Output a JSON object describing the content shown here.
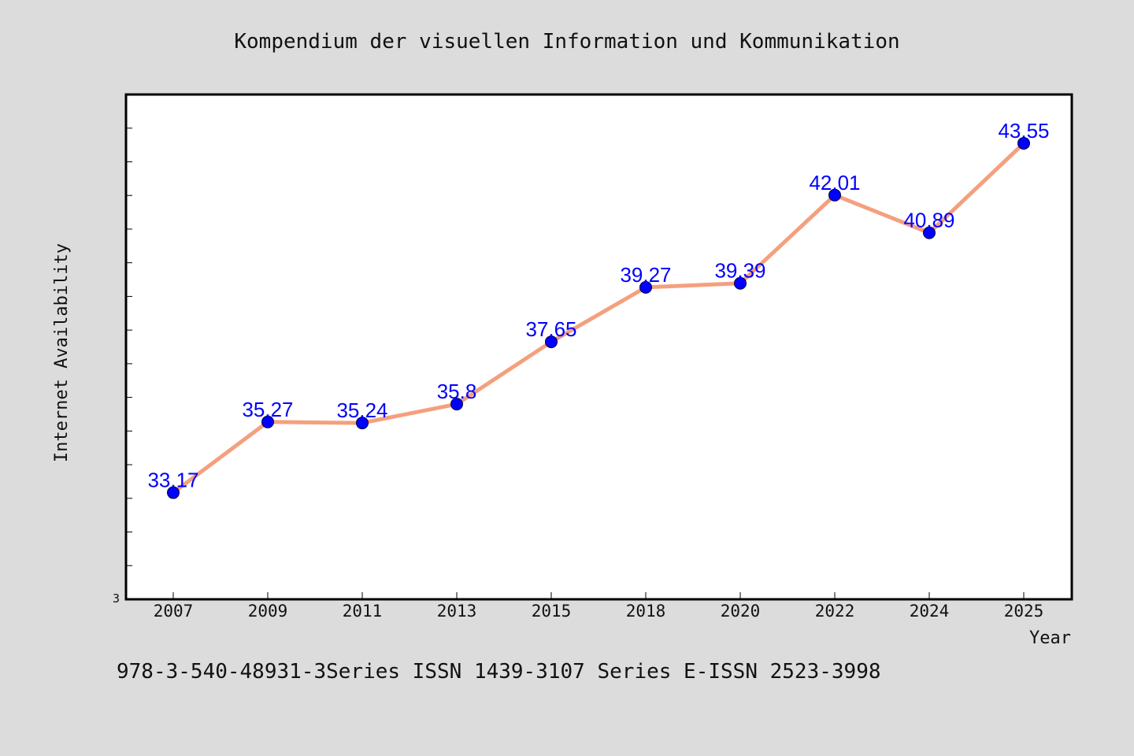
{
  "chart_data": {
    "type": "line",
    "title": "Kompendium der visuellen Information und Kommunikation",
    "xlabel": "Year",
    "ylabel": "Internet Availability",
    "categories": [
      "2007",
      "2009",
      "2011",
      "2013",
      "2015",
      "2018",
      "2020",
      "2022",
      "2024",
      "2025"
    ],
    "series": [
      {
        "values": [
          33.17,
          35.27,
          35.24,
          35.8,
          37.65,
          39.27,
          39.39,
          42.01,
          40.89,
          43.55
        ],
        "labels": [
          "33.17",
          "35.27",
          "35.24",
          "35.8",
          "37.65",
          "39.27",
          "39.39",
          "42.01",
          "40.89",
          "43.55"
        ]
      }
    ],
    "ylim": [
      30.0,
      45.0
    ],
    "yticks_visible_label": "3",
    "grid": false,
    "legend": "none",
    "line_color": "#f4a07e",
    "marker_color": "#0000ff",
    "label_color": "#0000ff",
    "plot_background": "#ffffff",
    "page_background": "#dcdcdc"
  },
  "footer": {
    "text": "978-3-540-48931-3Series ISSN 1439-3107 Series E-ISSN 2523-3998"
  }
}
